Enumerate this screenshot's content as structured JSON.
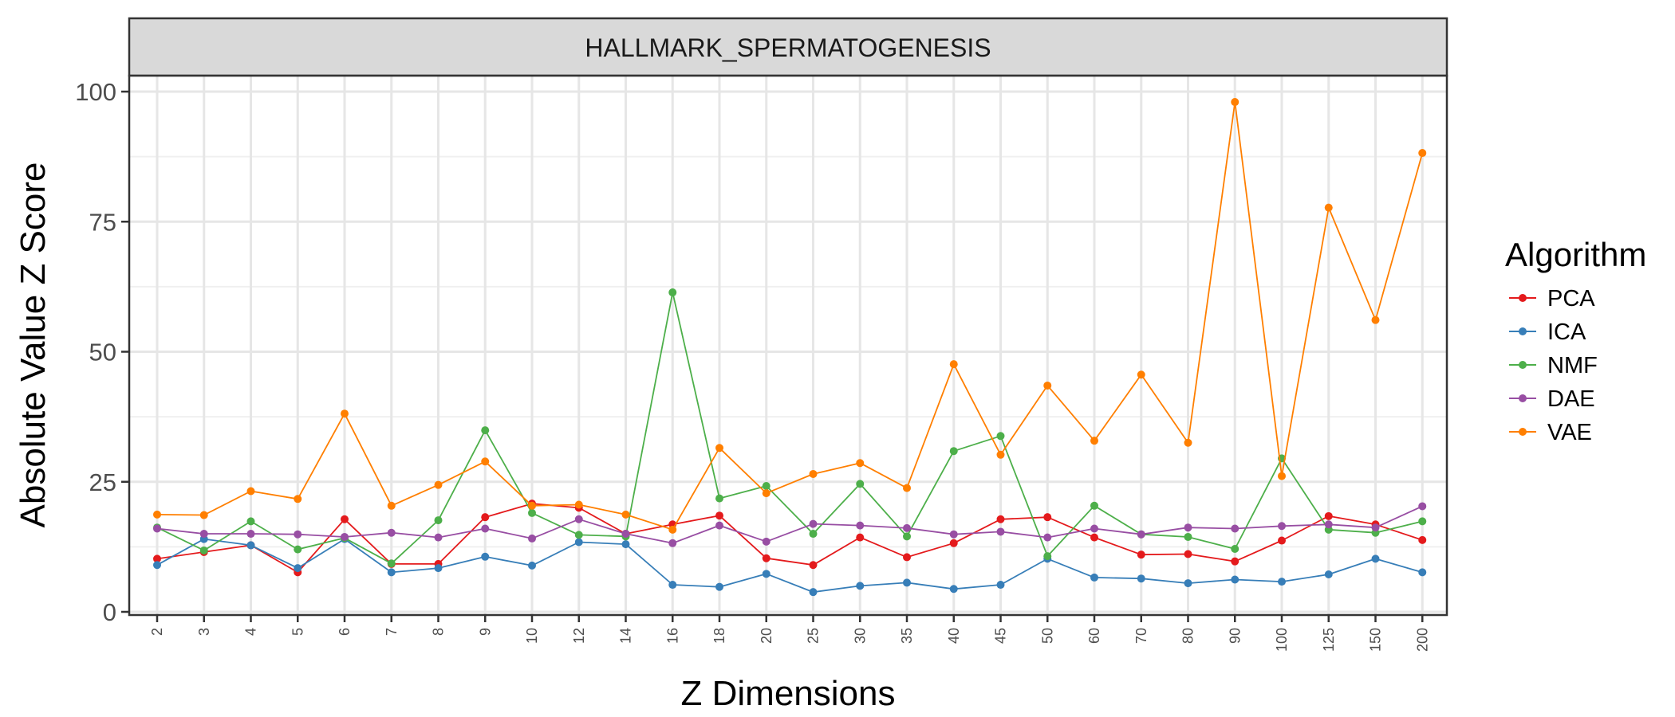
{
  "chart_data": {
    "type": "line",
    "title": "HALLMARK_SPERMATOGENESIS",
    "xlabel": "Z Dimensions",
    "ylabel": "Absolute Value Z Score",
    "ylim": [
      0,
      100
    ],
    "yticks": [
      0,
      25,
      50,
      75,
      100
    ],
    "grid": true,
    "legend_title": "Algorithm",
    "legend_position": "right",
    "categories": [
      "2",
      "3",
      "4",
      "5",
      "6",
      "7",
      "8",
      "9",
      "10",
      "12",
      "14",
      "16",
      "18",
      "20",
      "25",
      "30",
      "35",
      "40",
      "45",
      "50",
      "60",
      "70",
      "80",
      "90",
      "100",
      "125",
      "150",
      "200"
    ],
    "series": [
      {
        "name": "PCA",
        "color": "#e41a1c",
        "values": [
          10.2,
          11.5,
          12.8,
          7.6,
          17.8,
          9.2,
          9.2,
          18.2,
          20.8,
          20.0,
          15.0,
          16.8,
          18.5,
          10.3,
          9.0,
          14.3,
          10.5,
          13.2,
          17.8,
          18.2,
          14.3,
          11.0,
          11.1,
          9.7,
          13.7,
          18.4,
          16.8,
          13.8
        ]
      },
      {
        "name": "ICA",
        "color": "#377eb8",
        "values": [
          9.0,
          14.0,
          12.8,
          8.4,
          14.0,
          7.6,
          8.4,
          10.6,
          8.9,
          13.4,
          13.0,
          5.2,
          4.8,
          7.3,
          3.8,
          5.0,
          5.6,
          4.4,
          5.2,
          10.2,
          6.6,
          6.4,
          5.5,
          6.2,
          5.8,
          7.2,
          10.2,
          7.6
        ]
      },
      {
        "name": "NMF",
        "color": "#4daf4a",
        "values": [
          16.2,
          11.8,
          17.4,
          12.0,
          14.2,
          9.3,
          17.6,
          34.9,
          19.0,
          14.8,
          14.5,
          61.4,
          21.8,
          24.2,
          15.0,
          24.6,
          14.5,
          30.9,
          33.8,
          10.7,
          20.4,
          14.9,
          14.4,
          12.1,
          29.5,
          15.8,
          15.2,
          17.4
        ]
      },
      {
        "name": "DAE",
        "color": "#984ea3",
        "values": [
          16.0,
          15.0,
          15.0,
          14.9,
          14.4,
          15.2,
          14.3,
          16.0,
          14.1,
          17.8,
          15.0,
          13.2,
          16.6,
          13.5,
          16.9,
          16.6,
          16.1,
          14.9,
          15.4,
          14.3,
          16.0,
          14.9,
          16.2,
          16.0,
          16.5,
          16.8,
          16.2,
          20.3
        ]
      },
      {
        "name": "VAE",
        "color": "#ff7f00",
        "values": [
          18.7,
          18.6,
          23.2,
          21.7,
          38.1,
          20.4,
          24.4,
          28.9,
          20.4,
          20.6,
          18.7,
          15.8,
          31.5,
          22.8,
          26.5,
          28.6,
          23.8,
          47.6,
          30.2,
          43.5,
          32.9,
          45.6,
          32.5,
          98.0,
          26.1,
          77.7,
          56.1,
          88.2
        ]
      }
    ]
  }
}
